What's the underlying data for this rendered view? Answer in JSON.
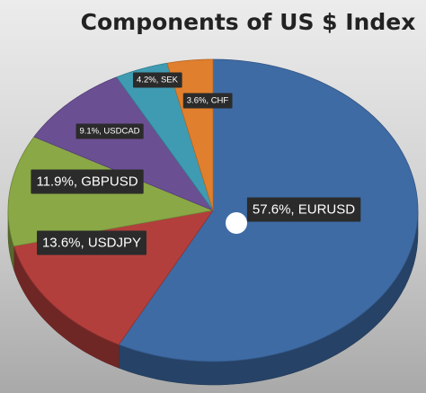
{
  "chart_data": {
    "type": "pie",
    "title": "Components of US $ Index",
    "series": [
      {
        "name": "EURUSD",
        "value": 57.6,
        "label": "57.6%, EURUSD",
        "color": "#3e6ba4"
      },
      {
        "name": "USDJPY",
        "value": 13.6,
        "label": "13.6%, USDJPY",
        "color": "#b33f3c"
      },
      {
        "name": "GBPUSD",
        "value": 11.9,
        "label": "11.9%, GBPUSD",
        "color": "#8aa846"
      },
      {
        "name": "USDCAD",
        "value": 9.1,
        "label": "9.1%, USDCAD",
        "color": "#6b4f93"
      },
      {
        "name": "SEK",
        "value": 4.2,
        "label": "4.2%, SEK",
        "color": "#3f9bb2"
      },
      {
        "name": "CHF",
        "value": 3.6,
        "label": "3.6%, CHF",
        "color": "#e07f2d"
      }
    ],
    "legend": "none",
    "style": "3d-tilted",
    "background_color": "#bdbdbd",
    "label_box_color": "#2b2b2b"
  }
}
